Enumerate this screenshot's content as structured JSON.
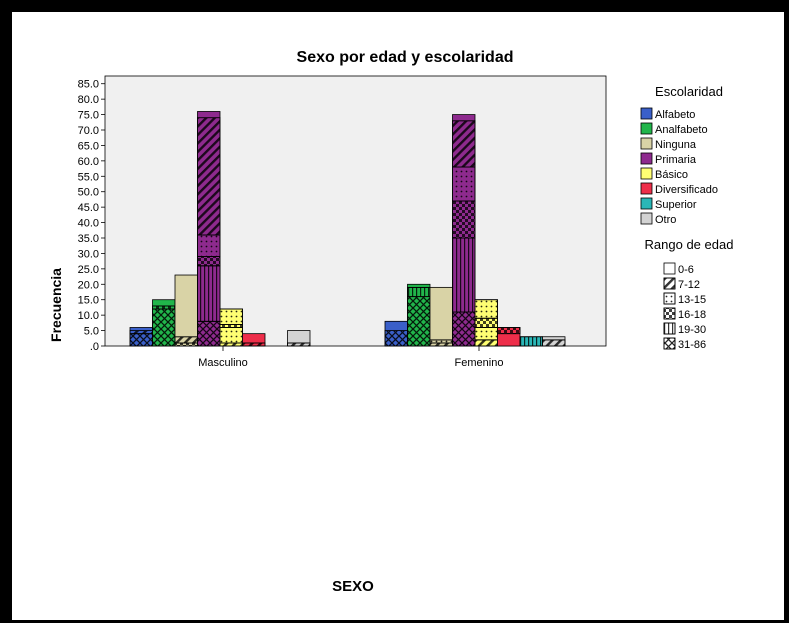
{
  "chart_data": {
    "type": "bar",
    "title": "Sexo por edad y escolaridad",
    "xlabel": "SEXO",
    "ylabel": "Frecuencia",
    "ylim": [
      0,
      85
    ],
    "yticks": [
      ".0",
      "5.0",
      "10.0",
      "15.0",
      "20.0",
      "25.0",
      "30.0",
      "35.0",
      "40.0",
      "45.0",
      "50.0",
      "55.0",
      "60.0",
      "65.0",
      "70.0",
      "75.0",
      "80.0",
      "85.0"
    ],
    "categories": [
      "Masculino",
      "Femenino"
    ],
    "stacked_by": "Rango de edad",
    "grouped_by": "Escolaridad",
    "legend_color_title": "Escolaridad",
    "legend_pattern_title": "Rango de edad",
    "grid": false,
    "legend_position": "right",
    "age_ranges": [
      {
        "label": "0-6",
        "pattern": "none"
      },
      {
        "label": "7-12",
        "pattern": "diagonal"
      },
      {
        "label": "13-15",
        "pattern": "dots"
      },
      {
        "label": "16-18",
        "pattern": "checker"
      },
      {
        "label": "19-30",
        "pattern": "vertical"
      },
      {
        "label": "31-86",
        "pattern": "crosshatch"
      }
    ],
    "series": [
      {
        "name": "Alfabeto",
        "color": "#3a5fc9",
        "segments": [
          [
            4,
            1,
            0,
            0,
            1,
            0
          ],
          [
            5,
            3,
            0,
            0,
            0,
            0
          ]
        ]
      },
      {
        "name": "Analfabeto",
        "color": "#21b54b",
        "segments": [
          [
            12,
            1,
            0,
            0,
            2,
            0
          ],
          [
            16,
            3,
            0,
            0,
            1,
            0
          ]
        ]
      },
      {
        "name": "Ninguna",
        "color": "#d9d3a6",
        "segments": [
          [
            1,
            2,
            0,
            0,
            20,
            0
          ],
          [
            1,
            1,
            0,
            0,
            17,
            0
          ]
        ]
      },
      {
        "name": "Primaria",
        "color": "#8e2a8e",
        "segments": [
          [
            8,
            18,
            0,
            3,
            7,
            38,
            2
          ],
          [
            11,
            24,
            0,
            12,
            11,
            15,
            2
          ]
        ]
      },
      {
        "name": "Básico",
        "color": "#ffff73",
        "segments": [
          [
            1,
            5,
            1,
            0,
            5,
            0
          ],
          [
            2,
            4,
            0,
            3,
            6,
            0
          ]
        ]
      },
      {
        "name": "Diversificado",
        "color": "#ee2e4a",
        "segments": [
          [
            0,
            1,
            0,
            0,
            3,
            0
          ],
          [
            0,
            4,
            0,
            2,
            0,
            0
          ]
        ]
      },
      {
        "name": "Superior",
        "color": "#2ab7b7",
        "segments": [
          [
            0,
            0,
            0,
            0,
            0,
            0
          ],
          [
            0,
            0,
            0,
            0,
            3,
            0
          ]
        ]
      },
      {
        "name": "Otro",
        "color": "#d3d3d3",
        "segments": [
          [
            0,
            1,
            0,
            0,
            4,
            0
          ],
          [
            0,
            2,
            0,
            0,
            1,
            0
          ]
        ]
      }
    ],
    "segment_patterns": {
      "Alfabeto": [
        [
          "crosshatch",
          "diagonal",
          "",
          "",
          "none",
          ""
        ],
        [
          "crosshatch",
          "none",
          "",
          "",
          "",
          ""
        ]
      ],
      "Analfabeto": [
        [
          "crosshatch",
          "checker",
          "",
          "",
          "none",
          ""
        ],
        [
          "crosshatch",
          "vertical",
          "",
          "",
          "none",
          ""
        ]
      ],
      "Ninguna": [
        [
          "checker",
          "diagonal",
          "",
          "",
          "none",
          ""
        ],
        [
          "diagonal",
          "dots",
          "",
          "",
          "none",
          ""
        ]
      ],
      "Primaria": [
        [
          "crosshatch",
          "vertical",
          "",
          "checker",
          "dots",
          "diagonal",
          "none"
        ],
        [
          "crosshatch",
          "vertical",
          "",
          "checker",
          "dots",
          "diagonal",
          "none"
        ]
      ],
      "Básico": [
        [
          "diagonal",
          "dots",
          "checker",
          "",
          "dots",
          ""
        ],
        [
          "diagonal",
          "dots",
          "",
          "checker",
          "dots",
          ""
        ]
      ],
      "Diversificado": [
        [
          "",
          "diagonal",
          "",
          "",
          "none",
          ""
        ],
        [
          "",
          "none",
          "",
          "checker",
          "",
          ""
        ]
      ],
      "Superior": [
        [
          "",
          "",
          "",
          "",
          "",
          ""
        ],
        [
          "",
          "",
          "",
          "",
          "vertical",
          ""
        ]
      ],
      "Otro": [
        [
          "",
          "diagonal",
          "",
          "",
          "none",
          ""
        ],
        [
          "",
          "diagonal",
          "",
          "",
          "none",
          ""
        ]
      ]
    }
  }
}
